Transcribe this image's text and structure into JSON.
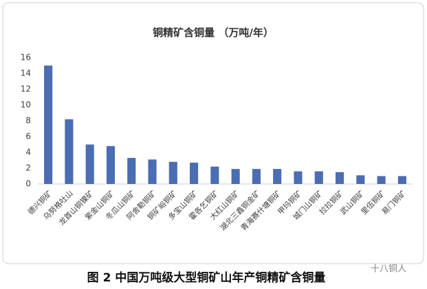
{
  "chart_data": {
    "type": "bar",
    "title": "铜精矿含铜量 （万吨/年）",
    "caption": "图 2  中国万吨级大型铜矿山年产铜精矿含铜量",
    "watermark": "十八铜人",
    "categories": [
      "德兴铜矿",
      "乌努格吐山",
      "龙首山铜镍矿",
      "紫金山铜矿",
      "冬瓜山铜矿",
      "阿舍勒铜矿",
      "铜矿峪铜矿",
      "多宝山铜矿",
      "霍各乞铜矿",
      "大红山铜矿",
      "湖北三鑫铜金矿",
      "青海赛什塘铜矿",
      "甲玛铜矿",
      "城门山铜矿",
      "拉拉铜矿",
      "武山铜矿",
      "里伍铜矿",
      "易门铜矿"
    ],
    "values": [
      15,
      8.2,
      5,
      4.8,
      3.3,
      3.1,
      2.8,
      2.7,
      2.2,
      1.9,
      1.9,
      1.9,
      1.6,
      1.6,
      1.5,
      1.1,
      1.0,
      1.0
    ],
    "color": "#4a6db3",
    "ylim": [
      0,
      16
    ],
    "yticks": [
      0,
      2,
      4,
      6,
      8,
      10,
      12,
      14,
      16
    ],
    "grid": false
  }
}
